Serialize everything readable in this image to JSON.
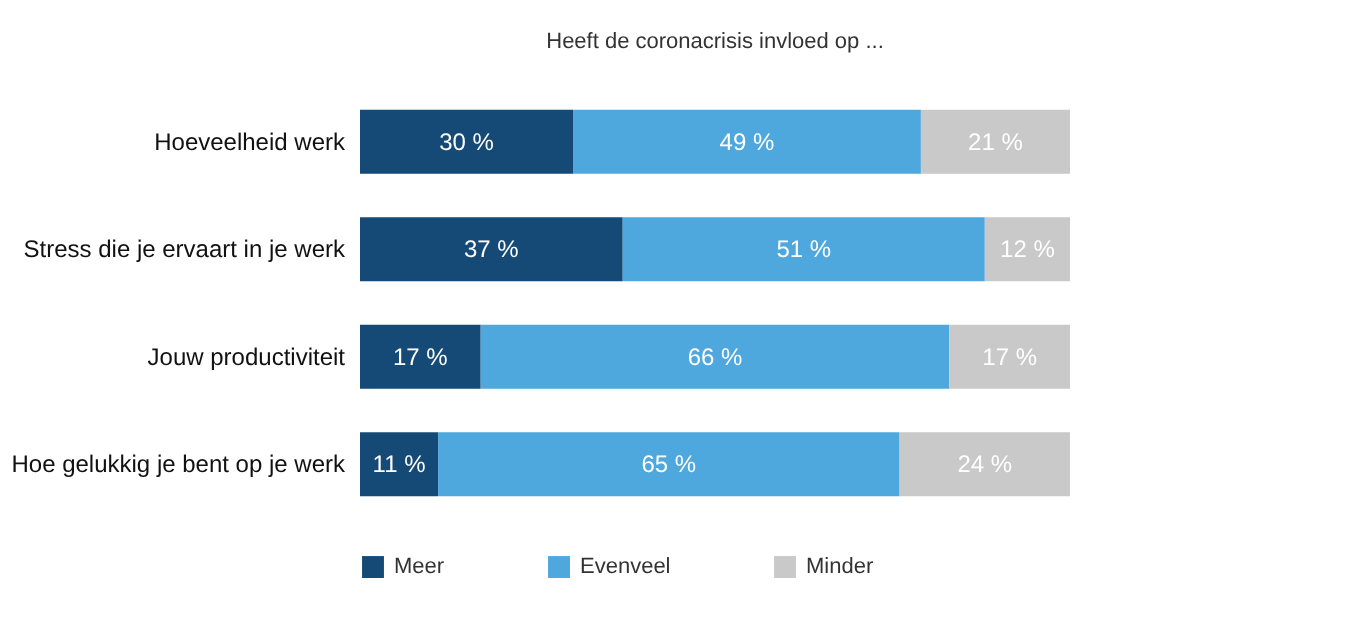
{
  "chart_data": {
    "type": "bar",
    "orientation": "horizontal",
    "stacked": true,
    "title": "Heeft de coronacrisis invloed op ...",
    "categories": [
      "Hoeveelheid werk",
      "Stress die je ervaart in je werk",
      "Jouw productiviteit",
      "Hoe gelukkig je bent op je werk"
    ],
    "xlim": [
      0,
      100
    ],
    "tick_labels": "y",
    "legend": "bottom",
    "series": [
      {
        "name": "Meer",
        "color": "#154a77",
        "values": [
          30,
          37,
          17,
          11
        ],
        "value_labels": [
          "30 %",
          "37 %",
          "17 %",
          "11 %"
        ]
      },
      {
        "name": "Evenveel",
        "color": "#4ea7dd",
        "values": [
          49,
          51,
          66,
          65
        ],
        "value_labels": [
          "49 %",
          "51 %",
          "66 %",
          "65 %"
        ]
      },
      {
        "name": "Minder",
        "color": "#c9c9c9",
        "values": [
          21,
          12,
          17,
          24
        ],
        "value_labels": [
          "21 %",
          "12 %",
          "17 %",
          "24 %"
        ]
      }
    ]
  }
}
